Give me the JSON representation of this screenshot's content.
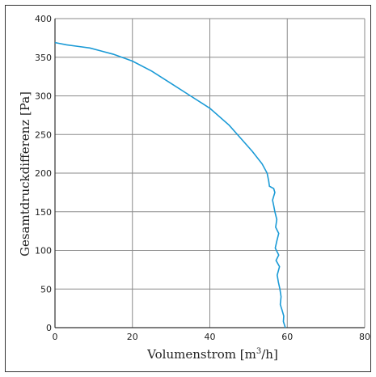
{
  "chart_data": {
    "type": "line",
    "xlabel_main": "Volumenstrom [m",
    "xlabel_sup": "3",
    "xlabel_tail": "/h]",
    "ylabel": "Gesamtdruckdifferenz [Pa]",
    "xlim": [
      0,
      80
    ],
    "ylim": [
      0,
      400
    ],
    "xticks": [
      0,
      20,
      40,
      60,
      80
    ],
    "yticks": [
      0,
      50,
      100,
      150,
      200,
      250,
      300,
      350,
      400
    ],
    "grid": true,
    "line_color": "#1a9ad6",
    "grid_color": "#8a8a8a",
    "axis_color": "#333333",
    "border_color": "#333333",
    "series": [
      {
        "values": [
          [
            0,
            369
          ],
          [
            3,
            366
          ],
          [
            6,
            364
          ],
          [
            9,
            362
          ],
          [
            12,
            358
          ],
          [
            15,
            354
          ],
          [
            20,
            345
          ],
          [
            25,
            332
          ],
          [
            30,
            316
          ],
          [
            35,
            300
          ],
          [
            40,
            284
          ],
          [
            45,
            262
          ],
          [
            48,
            245
          ],
          [
            51,
            228
          ],
          [
            53.5,
            212
          ],
          [
            54.8,
            200
          ],
          [
            55.2,
            190
          ],
          [
            55.4,
            183
          ],
          [
            56.5,
            180
          ],
          [
            56.8,
            175
          ],
          [
            56.2,
            165
          ],
          [
            56.5,
            158
          ],
          [
            56.8,
            150
          ],
          [
            57.3,
            140
          ],
          [
            57,
            130
          ],
          [
            57.8,
            122
          ],
          [
            57.3,
            112
          ],
          [
            56.9,
            103
          ],
          [
            57.8,
            94
          ],
          [
            57.1,
            87
          ],
          [
            58,
            79
          ],
          [
            57.4,
            68
          ],
          [
            57.7,
            59
          ],
          [
            58.1,
            50
          ],
          [
            58.4,
            40
          ],
          [
            58.2,
            30
          ],
          [
            58.7,
            22
          ],
          [
            59.1,
            15
          ],
          [
            59,
            8
          ],
          [
            59.5,
            0
          ]
        ]
      }
    ]
  }
}
